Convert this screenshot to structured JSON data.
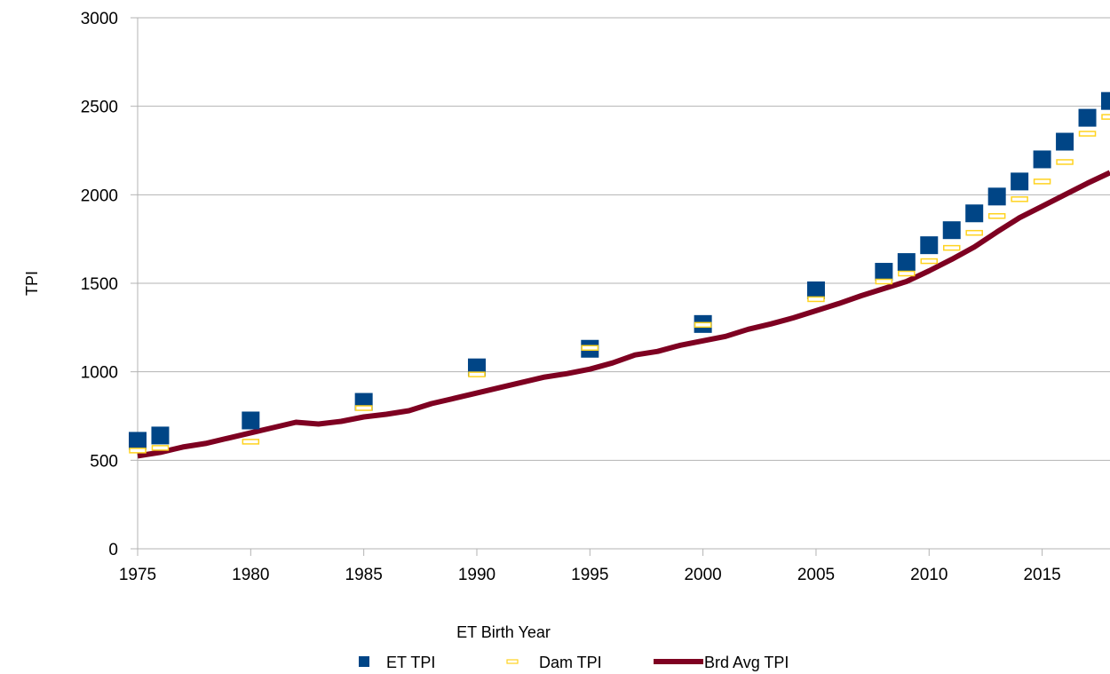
{
  "chart_data": {
    "type": "scatter",
    "xlabel": "ET Birth Year",
    "ylabel": "TPI",
    "xlim": [
      1975,
      2018
    ],
    "ylim": [
      0,
      3000
    ],
    "x_ticks": [
      1975,
      1980,
      1985,
      1990,
      1995,
      2000,
      2005,
      2010,
      2015
    ],
    "y_ticks": [
      0,
      500,
      1000,
      1500,
      2000,
      2500,
      3000
    ],
    "grid": "horizontal",
    "legend_position": "bottom",
    "series": [
      {
        "name": "ET TPI",
        "kind": "marker-square",
        "color": "#004586",
        "x": [
          1975,
          1976,
          1980,
          1985,
          1990,
          1995,
          2000,
          2005,
          2008,
          2009,
          2010,
          2011,
          2012,
          2013,
          2014,
          2015,
          2016,
          2017,
          2018
        ],
        "y": [
          610,
          640,
          725,
          830,
          1025,
          1130,
          1270,
          1460,
          1565,
          1620,
          1715,
          1800,
          1895,
          1990,
          2075,
          2200,
          2300,
          2435,
          2530
        ]
      },
      {
        "name": "Dam TPI",
        "kind": "marker-dash",
        "color": "#ffd320",
        "x": [
          1975,
          1976,
          1980,
          1985,
          1990,
          1995,
          2000,
          2005,
          2008,
          2009,
          2010,
          2011,
          2012,
          2013,
          2014,
          2015,
          2016,
          2017,
          2018
        ],
        "y": [
          555,
          570,
          605,
          795,
          985,
          1135,
          1265,
          1410,
          1510,
          1555,
          1625,
          1700,
          1785,
          1880,
          1975,
          2075,
          2185,
          2345,
          2440
        ]
      },
      {
        "name": "Brd Avg TPI",
        "kind": "line",
        "color": "#7e0021",
        "x": [
          1975,
          1976,
          1977,
          1978,
          1979,
          1980,
          1981,
          1982,
          1983,
          1984,
          1985,
          1986,
          1987,
          1988,
          1989,
          1990,
          1991,
          1992,
          1993,
          1994,
          1995,
          1996,
          1997,
          1998,
          1999,
          2000,
          2001,
          2002,
          2003,
          2004,
          2005,
          2006,
          2007,
          2008,
          2009,
          2010,
          2011,
          2012,
          2013,
          2014,
          2015,
          2016,
          2017,
          2018
        ],
        "y": [
          525,
          545,
          575,
          595,
          625,
          655,
          685,
          715,
          705,
          720,
          745,
          760,
          780,
          820,
          850,
          880,
          910,
          940,
          970,
          990,
          1015,
          1050,
          1095,
          1115,
          1150,
          1175,
          1200,
          1240,
          1270,
          1305,
          1345,
          1385,
          1430,
          1470,
          1510,
          1570,
          1635,
          1705,
          1790,
          1870,
          1935,
          2000,
          2065,
          2125
        ]
      }
    ]
  }
}
